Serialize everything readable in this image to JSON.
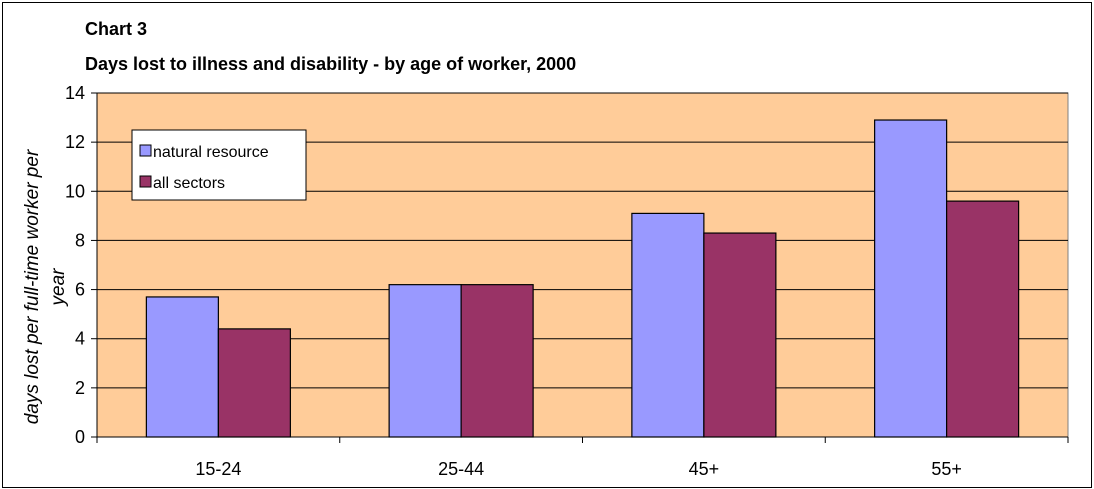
{
  "chart_data": {
    "type": "bar",
    "title": "Chart 3",
    "subtitle": "Days lost to illness and disability - by age of worker, 2000",
    "xlabel": "",
    "ylabel_lines": [
      "days lost per full-time worker per",
      "year"
    ],
    "categories": [
      "15-24",
      "25-44",
      "45+",
      "55+"
    ],
    "series": [
      {
        "name": "natural resource",
        "color": "#9999ff",
        "values": [
          5.7,
          6.2,
          9.1,
          12.9
        ]
      },
      {
        "name": "all sectors",
        "color": "#993366",
        "values": [
          4.4,
          6.2,
          8.3,
          9.6
        ]
      }
    ],
    "ylim": [
      0,
      14
    ],
    "yticks": [
      0,
      2,
      4,
      6,
      8,
      10,
      12,
      14
    ],
    "grid": true,
    "plot_background": "#ffcc99",
    "legend_position": "top-left"
  }
}
